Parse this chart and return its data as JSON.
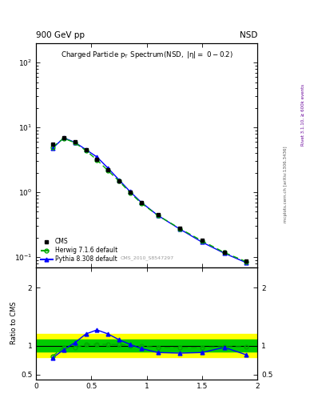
{
  "header_left": "900 GeV pp",
  "header_right": "NSD",
  "right_label1": "Rivet 3.1.10, ≥ 600k events",
  "right_label2": "mcplots.cern.ch [arXiv:1306.3436]",
  "cms_label": "CMS_2010_S8547297",
  "ylabel_ratio": "Ratio to CMS",
  "xlim": [
    0,
    2
  ],
  "ylim_main": [
    0.07,
    200
  ],
  "ylim_ratio": [
    0.42,
    2.35
  ],
  "cms_x": [
    0.15,
    0.25,
    0.35,
    0.45,
    0.55,
    0.65,
    0.75,
    0.85,
    0.95,
    1.1,
    1.3,
    1.5,
    1.7,
    1.9
  ],
  "cms_y": [
    5.5,
    7.0,
    6.0,
    4.5,
    3.2,
    2.2,
    1.5,
    1.0,
    0.7,
    0.45,
    0.28,
    0.18,
    0.12,
    0.087
  ],
  "cms_yerr": [
    0.3,
    0.35,
    0.3,
    0.22,
    0.16,
    0.11,
    0.075,
    0.05,
    0.035,
    0.022,
    0.014,
    0.009,
    0.006,
    0.005
  ],
  "herwig_x": [
    0.15,
    0.25,
    0.35,
    0.45,
    0.55,
    0.65,
    0.75,
    0.85,
    0.95,
    1.1,
    1.3,
    1.5,
    1.7,
    1.9
  ],
  "herwig_y": [
    5.0,
    6.8,
    5.8,
    4.4,
    3.15,
    2.15,
    1.48,
    0.98,
    0.68,
    0.44,
    0.275,
    0.178,
    0.118,
    0.085
  ],
  "pythia_x": [
    0.15,
    0.25,
    0.35,
    0.45,
    0.55,
    0.65,
    0.75,
    0.85,
    0.95,
    1.1,
    1.3,
    1.5,
    1.7,
    1.9
  ],
  "pythia_y": [
    4.8,
    6.9,
    5.9,
    4.55,
    3.5,
    2.35,
    1.55,
    1.02,
    0.7,
    0.44,
    0.27,
    0.17,
    0.115,
    0.082
  ],
  "herwig_ratio": [
    0.82,
    0.97,
    0.965,
    1.02,
    1.025,
    1.02,
    1.02,
    1.0,
    0.99,
    0.97,
    0.97,
    0.97,
    0.98,
    0.98
  ],
  "pythia_ratio": [
    0.79,
    0.93,
    1.05,
    1.2,
    1.27,
    1.2,
    1.1,
    1.02,
    0.95,
    0.88,
    0.87,
    0.88,
    0.97,
    0.84
  ],
  "cms_color": "#000000",
  "herwig_color": "#00aa00",
  "pythia_color": "#0000ff",
  "band_yellow": "#ffff00",
  "band_green": "#00cc00",
  "xticks": [
    0,
    0.5,
    1.0,
    1.5,
    2.0
  ],
  "xtick_labels": [
    "0",
    "0.5",
    "1",
    "1.5",
    "2"
  ],
  "yticks_ratio": [
    0.5,
    1.0,
    2.0
  ],
  "ytick_labels_ratio": [
    "0.5",
    "1",
    "2"
  ]
}
